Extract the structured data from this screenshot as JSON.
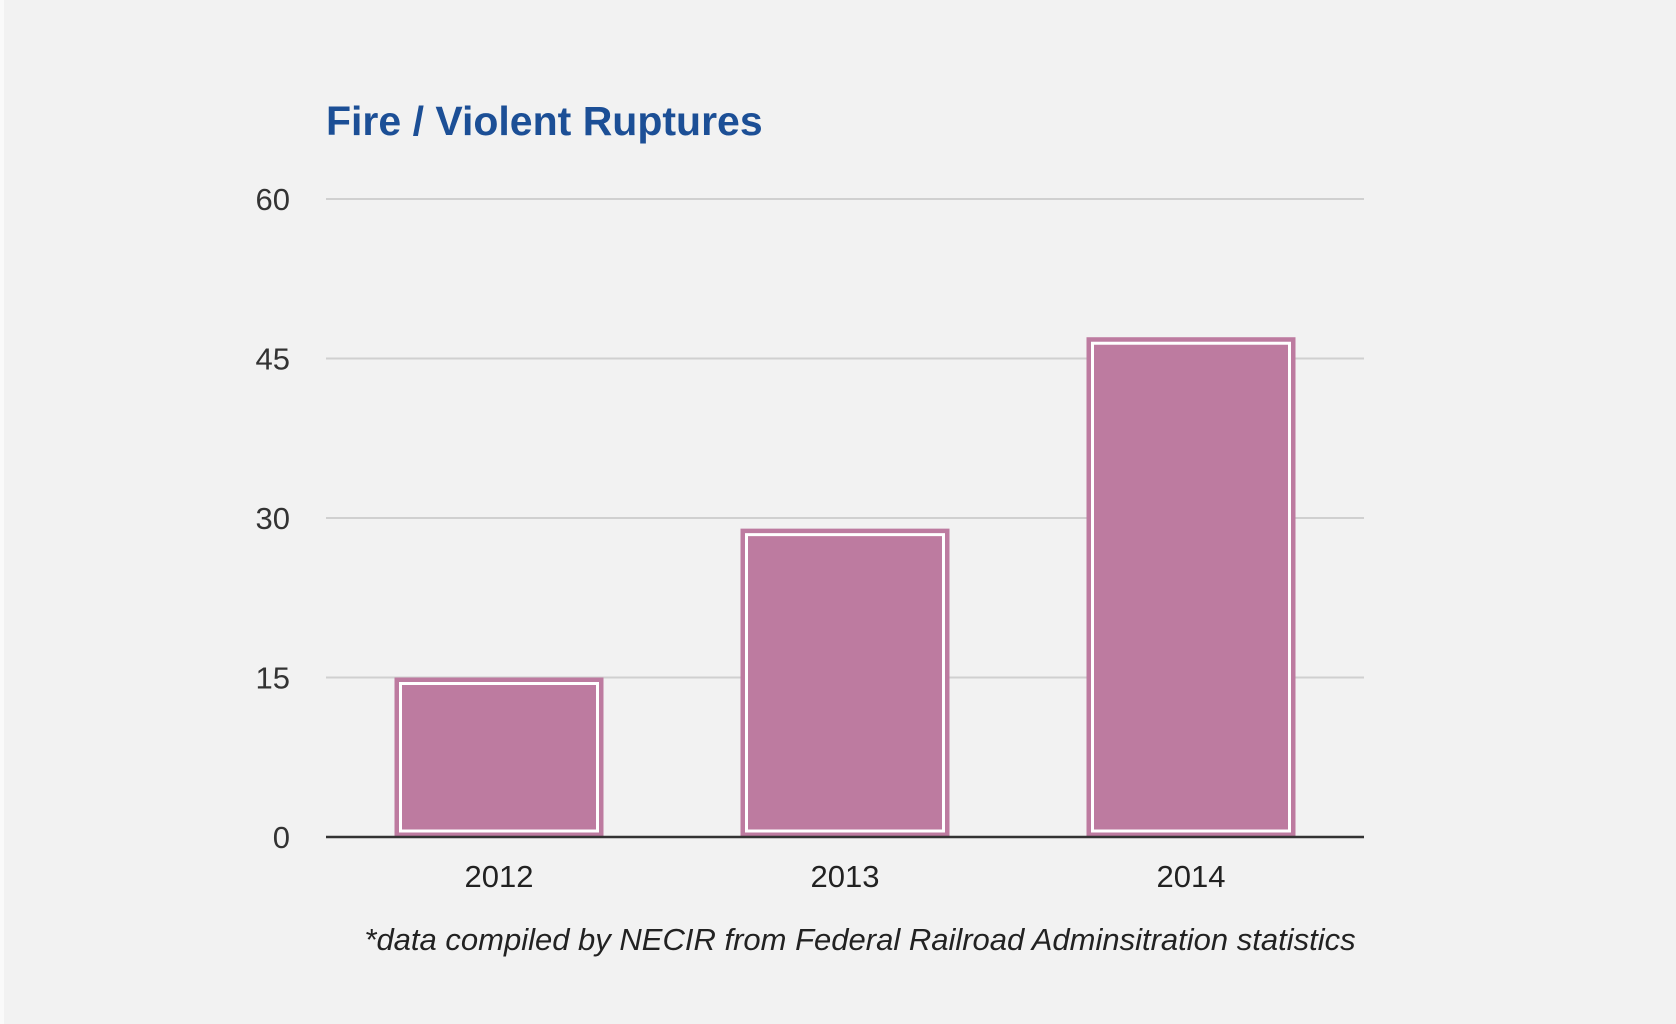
{
  "chart_data": {
    "type": "bar",
    "title": "Fire / Violent Ruptures",
    "categories": [
      "2012",
      "2013",
      "2014"
    ],
    "values": [
      15,
      29,
      47
    ],
    "xlabel": "",
    "ylabel": "",
    "ylim": [
      0,
      60
    ],
    "yticks": [
      0,
      15,
      30,
      45,
      60
    ],
    "grid": true,
    "legend": "none",
    "annotation": "*data compiled by NECIR from Federal Railroad Adminsitration statistics",
    "colors": {
      "bar": "#bd7ba0",
      "title": "#1c4f96",
      "background": "#f2f2f2"
    }
  }
}
